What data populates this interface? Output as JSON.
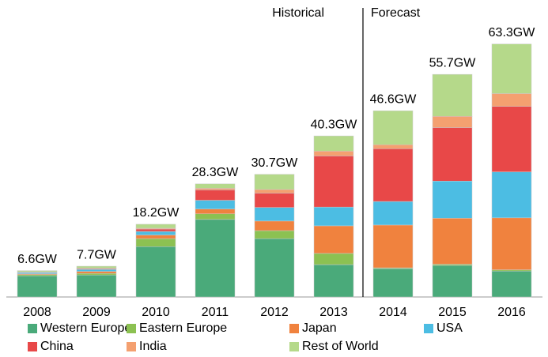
{
  "chart_data": {
    "type": "stacked-bar",
    "annotations": [
      "Historical",
      "Forecast"
    ],
    "categories": [
      "2008",
      "2009",
      "2010",
      "2011",
      "2012",
      "2013",
      "2014",
      "2015",
      "2016"
    ],
    "totals": [
      6.6,
      7.7,
      18.2,
      28.3,
      30.7,
      40.3,
      46.6,
      55.7,
      63.3
    ],
    "total_labels": [
      "6.6GW",
      "7.7GW",
      "18.2GW",
      "28.3GW",
      "30.7GW",
      "40.3GW",
      "46.6GW",
      "55.7GW",
      "63.3GW"
    ],
    "series": [
      {
        "name": "Western Europe",
        "color": "#4aaa7a",
        "values": [
          5.3,
          5.5,
          12.6,
          19.4,
          14.6,
          8.1,
          7.1,
          7.9,
          6.5
        ]
      },
      {
        "name": "Eastern Europe",
        "color": "#8cc152",
        "values": [
          0.3,
          0.4,
          2.0,
          1.4,
          2.0,
          2.8,
          0.2,
          0.3,
          0.3
        ]
      },
      {
        "name": "Japan",
        "color": "#f0823e",
        "values": [
          0.2,
          0.5,
          0.9,
          1.2,
          2.4,
          6.9,
          10.7,
          11.5,
          13.0
        ]
      },
      {
        "name": "USA",
        "color": "#4cbde3",
        "values": [
          0.3,
          0.5,
          0.9,
          2.2,
          3.4,
          4.7,
          5.9,
          9.3,
          11.5
        ]
      },
      {
        "name": "China",
        "color": "#e84848",
        "values": [
          0.1,
          0.2,
          0.6,
          2.6,
          3.6,
          12.8,
          13.2,
          13.4,
          16.4
        ]
      },
      {
        "name": "India",
        "color": "#f4a070",
        "values": [
          0.1,
          0.1,
          0.2,
          0.4,
          0.9,
          1.2,
          1.0,
          2.8,
          3.2
        ]
      },
      {
        "name": "Rest of World",
        "color": "#b5d98a",
        "values": [
          0.3,
          0.5,
          1.0,
          1.1,
          3.8,
          3.8,
          8.5,
          10.5,
          12.4
        ]
      }
    ]
  }
}
